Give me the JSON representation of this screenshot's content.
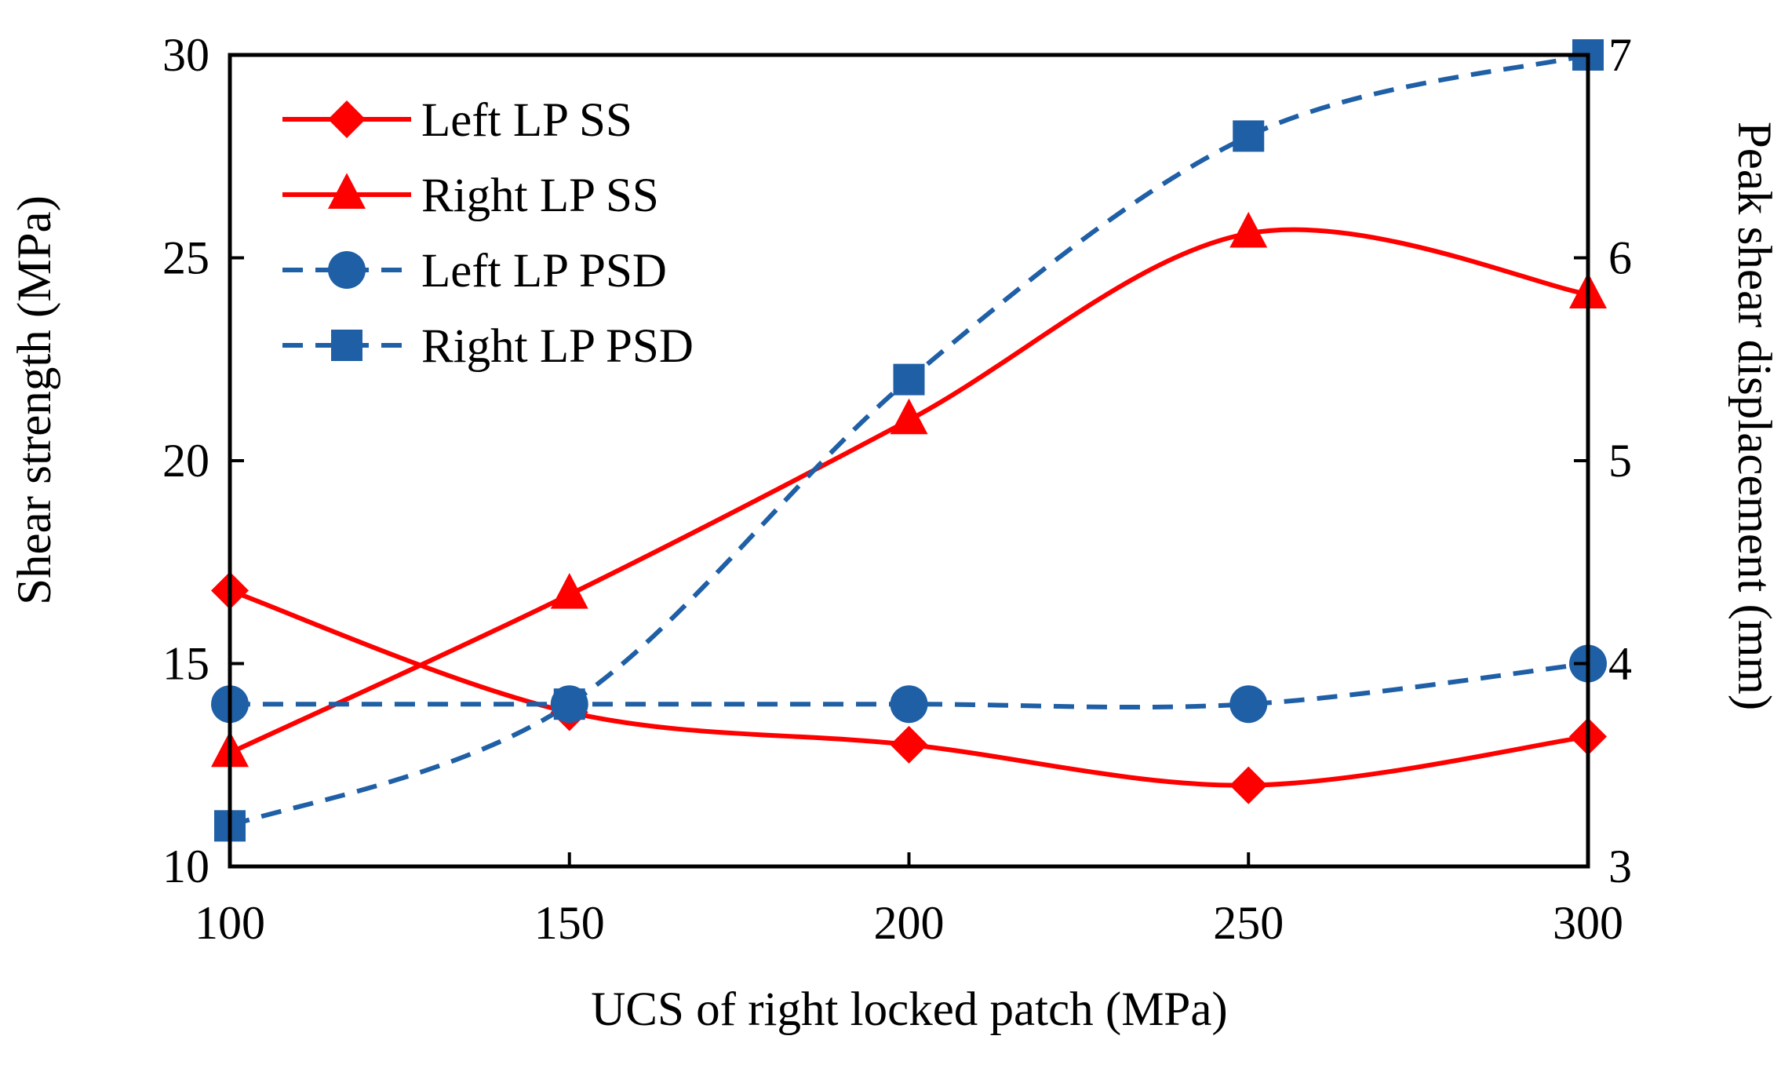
{
  "chart_data": {
    "type": "line",
    "title": "",
    "xlabel": "UCS of right locked patch (MPa)",
    "ylabel": "Shear strength (MPa)",
    "y2label": "Peak shear displacement (mm)",
    "x": [
      100,
      150,
      200,
      250,
      300
    ],
    "x_ticks": [
      "100",
      "150",
      "200",
      "250",
      "300"
    ],
    "xlim": [
      100,
      300
    ],
    "ylim": [
      10,
      30
    ],
    "y_ticks": [
      "10",
      "15",
      "20",
      "25",
      "30"
    ],
    "y2lim": [
      3,
      7
    ],
    "y2_ticks": [
      "3",
      "4",
      "5",
      "6",
      "7"
    ],
    "grid": false,
    "legend_position": "top-left",
    "series": [
      {
        "name": "Left LP SS",
        "axis": "left",
        "values": [
          16.8,
          13.8,
          13.0,
          12.0,
          13.2
        ],
        "color": "#ff0000",
        "marker": "diamond",
        "dashed": false
      },
      {
        "name": "Right LP SS",
        "axis": "left",
        "values": [
          12.8,
          16.7,
          21.0,
          25.6,
          24.1
        ],
        "color": "#ff0000",
        "marker": "triangle",
        "dashed": false
      },
      {
        "name": "Left LP PSD",
        "axis": "right",
        "values": [
          3.8,
          3.8,
          3.8,
          3.8,
          4.0
        ],
        "color": "#1f5fa6",
        "marker": "circle",
        "dashed": true
      },
      {
        "name": "Right LP PSD",
        "axis": "right",
        "values": [
          3.2,
          3.8,
          5.4,
          6.6,
          7.0
        ],
        "color": "#1f5fa6",
        "marker": "square",
        "dashed": true
      }
    ]
  }
}
